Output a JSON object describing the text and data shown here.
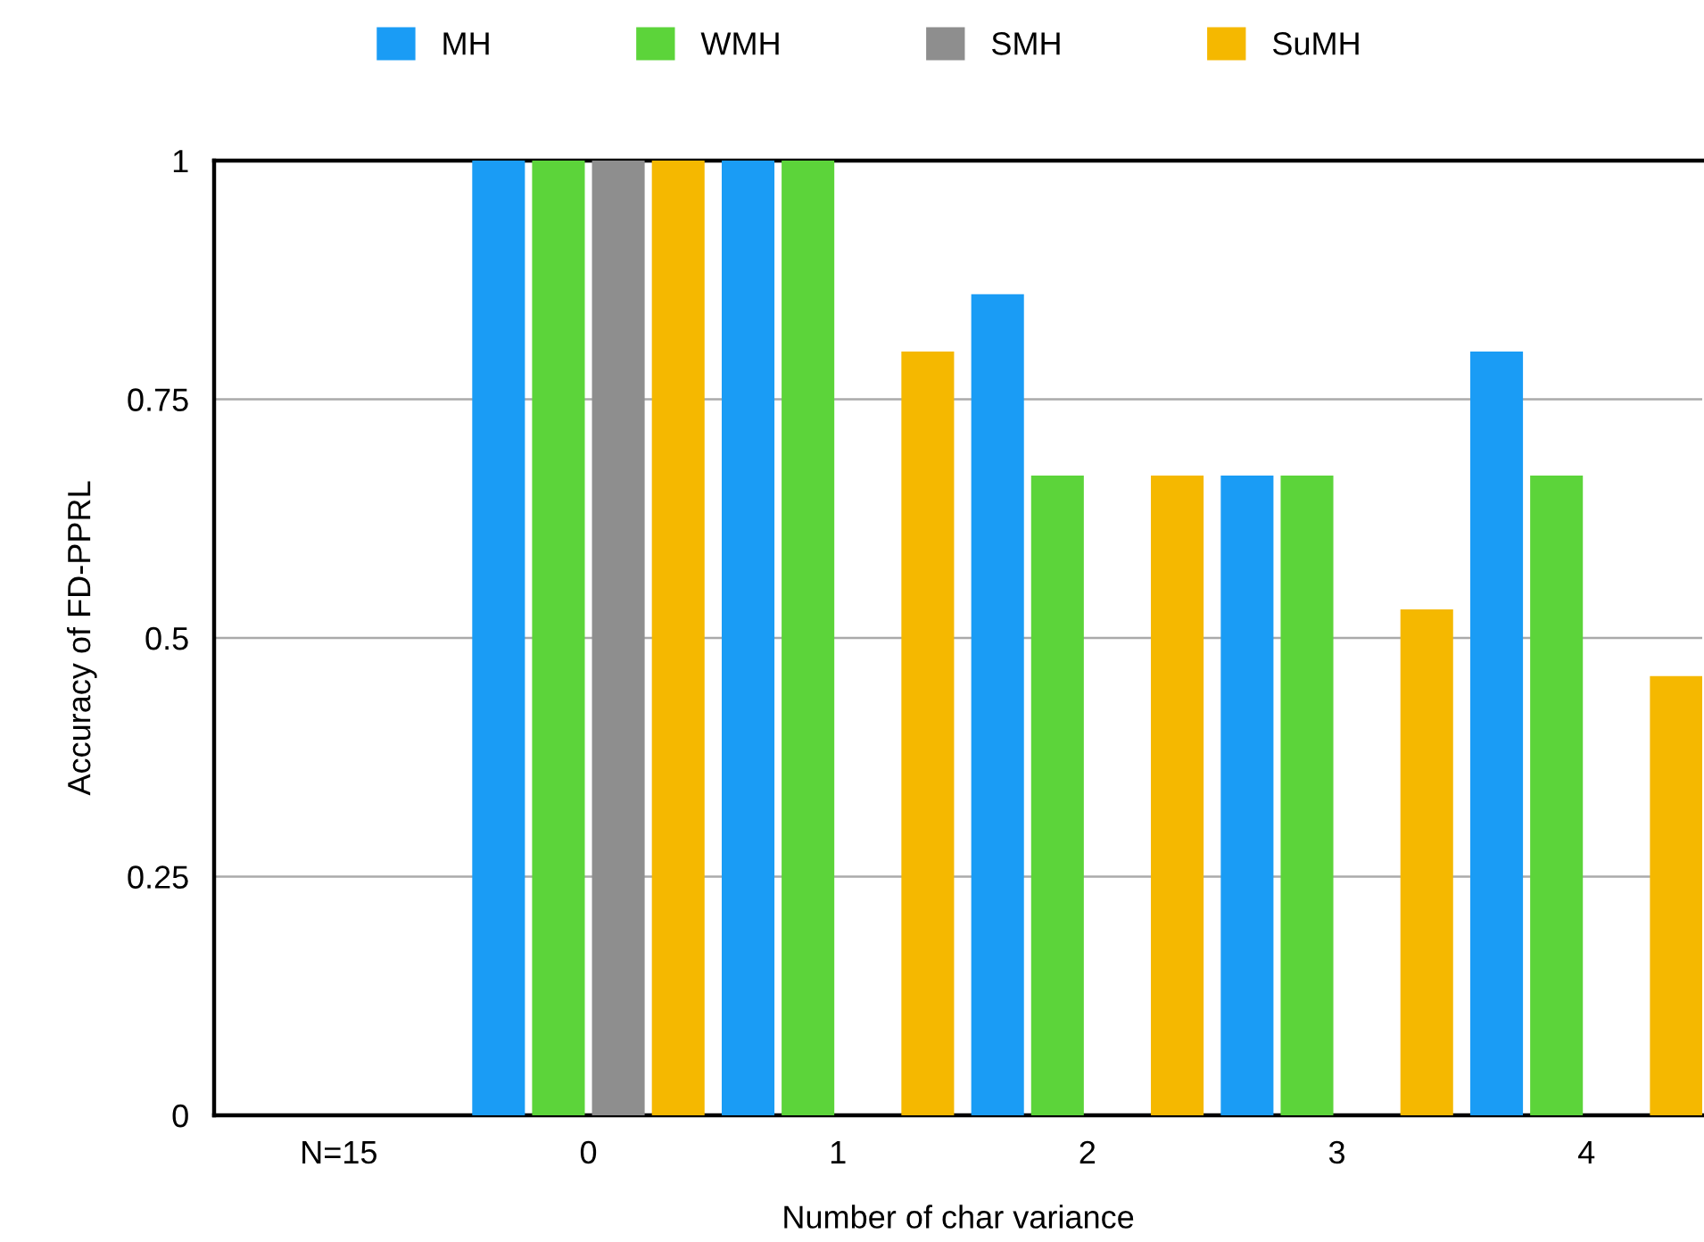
{
  "chart_data": {
    "type": "bar",
    "xlabel": "Number of char variance",
    "ylabel": "Accuracy of FD-PPRL",
    "categories": [
      "N=15",
      "0",
      "1",
      "2",
      "3",
      "4"
    ],
    "series": [
      {
        "name": "MH",
        "color": "#1a9cf5",
        "values": [
          0,
          1,
          1,
          0.86,
          0.67,
          0.8
        ]
      },
      {
        "name": "WMH",
        "color": "#5cd43a",
        "values": [
          0,
          1,
          1,
          0.67,
          0.67,
          0.67
        ]
      },
      {
        "name": "SMH",
        "color": "#8e8e8e",
        "values": [
          0,
          1,
          0,
          0,
          0,
          0
        ]
      },
      {
        "name": "SuMH",
        "color": "#f5b800",
        "values": [
          0,
          1,
          0.8,
          0.67,
          0.53,
          0.46
        ]
      }
    ],
    "ylim": [
      0,
      1
    ],
    "yticks": [
      0,
      0.25,
      0.5,
      0.75,
      1
    ],
    "grid": "y",
    "legend": "top"
  }
}
